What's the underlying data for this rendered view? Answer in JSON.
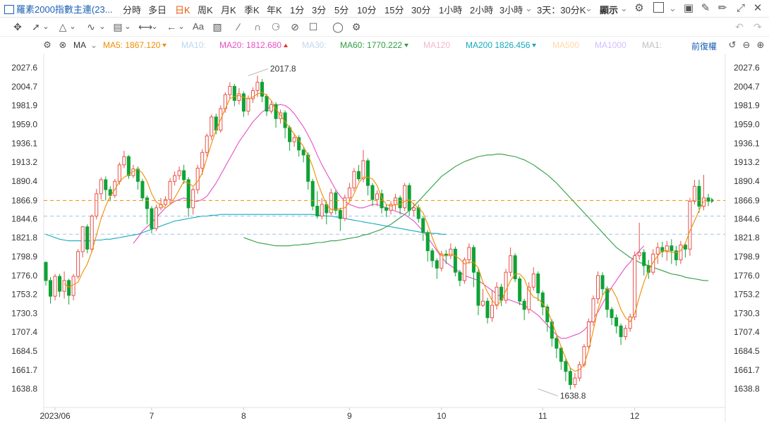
{
  "header": {
    "title": "羅素2000指數主連(23...",
    "timeframes": [
      "分時",
      "多日",
      "日K",
      "周K",
      "月K",
      "季K",
      "年K",
      "1分",
      "3分",
      "5分",
      "10分",
      "15分",
      "30分",
      "1小時",
      "2小時",
      "3小時",
      "3天：30分K",
      "顯示"
    ],
    "active_timeframe": "日K"
  },
  "ma_bar": {
    "selector": "MA",
    "items": [
      {
        "label": "MA5:",
        "value": "1867.120",
        "color": "#f08c00",
        "trend": "down"
      },
      {
        "label": "MA10:",
        "value": "",
        "color": "#b8d8f0",
        "trend": ""
      },
      {
        "label": "MA20:",
        "value": "1812.680",
        "color": "#e64fc4",
        "trend": "up"
      },
      {
        "label": "MA30:",
        "value": "",
        "color": "#c5d5ea",
        "trend": ""
      },
      {
        "label": "MA60:",
        "value": "1770.222",
        "color": "#2f9e44",
        "trend": "down"
      },
      {
        "label": "MA120",
        "value": "",
        "color": "#f4b6cf",
        "trend": ""
      },
      {
        "label": "MA200",
        "value": "1826.456",
        "color": "#15aabf",
        "trend": "down"
      },
      {
        "label": "MA500",
        "value": "",
        "color": "#ffd8a8",
        "trend": ""
      },
      {
        "label": "MA1000",
        "value": "",
        "color": "#d0bfff",
        "trend": ""
      },
      {
        "label": "MA1:",
        "value": "",
        "color": "#c0c0c0",
        "trend": ""
      }
    ],
    "adjust_label": "前復權"
  },
  "colors": {
    "up": "#e8504a",
    "down": "#10a236",
    "ma5": "#f08c00",
    "ma20": "#e64fc4",
    "ma60": "#2f9e44",
    "ma200": "#15aabf",
    "current": "#f08c00"
  },
  "chart_data": {
    "type": "candlestick",
    "y_ticks": [
      "2027.6",
      "2004.7",
      "1981.9",
      "1959.0",
      "1936.1",
      "1913.2",
      "1890.4",
      "1866.9",
      "1844.6",
      "1821.8",
      "1798.9",
      "1776.0",
      "1753.2",
      "1730.3",
      "1707.4",
      "1684.5",
      "1661.7",
      "1638.8"
    ],
    "ylim": [
      1618,
      2043
    ],
    "x_labels": [
      {
        "label": "2023/06",
        "index": 2
      },
      {
        "label": "7",
        "index": 23
      },
      {
        "label": "8",
        "index": 43
      },
      {
        "label": "9",
        "index": 66
      },
      {
        "label": "10",
        "index": 86
      },
      {
        "label": "11",
        "index": 108
      },
      {
        "label": "12",
        "index": 128
      }
    ],
    "current_price": "1866.9",
    "high_annotation": {
      "label": "2017.8",
      "index": 44,
      "value": 2017.8
    },
    "low_annotation": {
      "label": "1638.8",
      "index": 107,
      "value": 1638.8
    },
    "reference_lines": [
      1848,
      1826
    ],
    "candles": [
      [
        1792,
        1770,
        1793,
        1764
      ],
      [
        1770,
        1751,
        1774,
        1742
      ],
      [
        1751,
        1775,
        1778,
        1746
      ],
      [
        1775,
        1757,
        1778,
        1750
      ],
      [
        1757,
        1770,
        1781,
        1748
      ],
      [
        1770,
        1752,
        1772,
        1741
      ],
      [
        1752,
        1775,
        1778,
        1746
      ],
      [
        1775,
        1805,
        1808,
        1772
      ],
      [
        1805,
        1835,
        1836,
        1798
      ],
      [
        1835,
        1808,
        1838,
        1803
      ],
      [
        1808,
        1848,
        1850,
        1804
      ],
      [
        1848,
        1875,
        1881,
        1844
      ],
      [
        1875,
        1892,
        1895,
        1868
      ],
      [
        1892,
        1880,
        1896,
        1867
      ],
      [
        1880,
        1873,
        1884,
        1866
      ],
      [
        1873,
        1890,
        1893,
        1870
      ],
      [
        1890,
        1910,
        1913,
        1886
      ],
      [
        1910,
        1920,
        1927,
        1906
      ],
      [
        1920,
        1897,
        1922,
        1893
      ],
      [
        1897,
        1905,
        1910,
        1894
      ],
      [
        1905,
        1890,
        1908,
        1880
      ],
      [
        1890,
        1870,
        1893,
        1866
      ],
      [
        1870,
        1857,
        1873,
        1838
      ],
      [
        1857,
        1833,
        1860,
        1827
      ],
      [
        1833,
        1858,
        1862,
        1830
      ],
      [
        1858,
        1862,
        1870,
        1855
      ],
      [
        1862,
        1868,
        1872,
        1860
      ],
      [
        1868,
        1890,
        1894,
        1863
      ],
      [
        1890,
        1897,
        1902,
        1885
      ],
      [
        1897,
        1903,
        1908,
        1892
      ],
      [
        1903,
        1892,
        1910,
        1887
      ],
      [
        1892,
        1858,
        1895,
        1847
      ],
      [
        1858,
        1880,
        1883,
        1850
      ],
      [
        1880,
        1906,
        1910,
        1875
      ],
      [
        1906,
        1925,
        1929,
        1898
      ],
      [
        1925,
        1945,
        1948,
        1920
      ],
      [
        1945,
        1968,
        1971,
        1940
      ],
      [
        1968,
        1952,
        1972,
        1947
      ],
      [
        1952,
        1978,
        1982,
        1949
      ],
      [
        1978,
        1995,
        1998,
        1973
      ],
      [
        1995,
        2005,
        2010,
        1990
      ],
      [
        2005,
        1988,
        2008,
        1981
      ],
      [
        1988,
        1996,
        2003,
        1983
      ],
      [
        1996,
        1975,
        1999,
        1968
      ],
      [
        1975,
        1990,
        1994,
        1970
      ],
      [
        1990,
        2000,
        2004,
        1985
      ],
      [
        2000,
        2010,
        2018,
        1992
      ],
      [
        2010,
        1993,
        2014,
        1986
      ],
      [
        1993,
        1975,
        1996,
        1969
      ],
      [
        1975,
        1983,
        1987,
        1972
      ],
      [
        1983,
        1966,
        1986,
        1955
      ],
      [
        1966,
        1973,
        1977,
        1960
      ],
      [
        1973,
        1955,
        1976,
        1942
      ],
      [
        1955,
        1938,
        1958,
        1927
      ],
      [
        1938,
        1943,
        1948,
        1932
      ],
      [
        1943,
        1928,
        1946,
        1920
      ],
      [
        1928,
        1922,
        1931,
        1913
      ],
      [
        1922,
        1890,
        1925,
        1880
      ],
      [
        1890,
        1860,
        1893,
        1855
      ],
      [
        1860,
        1848,
        1878,
        1845
      ],
      [
        1848,
        1862,
        1870,
        1844
      ],
      [
        1862,
        1852,
        1866,
        1838
      ],
      [
        1852,
        1876,
        1881,
        1849
      ],
      [
        1876,
        1855,
        1879,
        1850
      ],
      [
        1855,
        1845,
        1858,
        1830
      ],
      [
        1845,
        1870,
        1874,
        1842
      ],
      [
        1870,
        1882,
        1888,
        1867
      ],
      [
        1882,
        1902,
        1906,
        1878
      ],
      [
        1902,
        1893,
        1910,
        1890
      ],
      [
        1893,
        1915,
        1928,
        1889
      ],
      [
        1915,
        1885,
        1918,
        1873
      ],
      [
        1885,
        1868,
        1888,
        1860
      ],
      [
        1868,
        1875,
        1879,
        1860
      ],
      [
        1875,
        1858,
        1880,
        1851
      ],
      [
        1858,
        1855,
        1862,
        1847
      ],
      [
        1855,
        1862,
        1866,
        1850
      ],
      [
        1862,
        1870,
        1875,
        1855
      ],
      [
        1870,
        1858,
        1873,
        1850
      ],
      [
        1858,
        1885,
        1888,
        1854
      ],
      [
        1885,
        1855,
        1888,
        1848
      ],
      [
        1855,
        1858,
        1864,
        1848
      ],
      [
        1858,
        1845,
        1862,
        1840
      ],
      [
        1845,
        1828,
        1848,
        1818
      ],
      [
        1828,
        1806,
        1831,
        1793
      ],
      [
        1806,
        1794,
        1809,
        1786
      ],
      [
        1794,
        1785,
        1797,
        1772
      ],
      [
        1785,
        1802,
        1806,
        1781
      ],
      [
        1802,
        1800,
        1807,
        1790
      ],
      [
        1800,
        1808,
        1815,
        1796
      ],
      [
        1808,
        1780,
        1811,
        1775
      ],
      [
        1780,
        1770,
        1783,
        1763
      ],
      [
        1770,
        1795,
        1798,
        1766
      ],
      [
        1795,
        1810,
        1815,
        1790
      ],
      [
        1810,
        1780,
        1813,
        1762
      ],
      [
        1780,
        1740,
        1784,
        1728
      ],
      [
        1740,
        1745,
        1760,
        1738
      ],
      [
        1745,
        1725,
        1749,
        1718
      ],
      [
        1725,
        1740,
        1758,
        1720
      ],
      [
        1740,
        1762,
        1768,
        1735
      ],
      [
        1762,
        1746,
        1766,
        1739
      ],
      [
        1746,
        1780,
        1784,
        1742
      ],
      [
        1780,
        1800,
        1810,
        1775
      ],
      [
        1800,
        1772,
        1803,
        1768
      ],
      [
        1772,
        1745,
        1775,
        1740
      ],
      [
        1745,
        1735,
        1748,
        1722
      ],
      [
        1735,
        1762,
        1768,
        1730
      ],
      [
        1762,
        1778,
        1786,
        1758
      ],
      [
        1778,
        1755,
        1781,
        1745
      ],
      [
        1755,
        1738,
        1758,
        1728
      ],
      [
        1738,
        1720,
        1741,
        1708
      ],
      [
        1720,
        1700,
        1723,
        1690
      ],
      [
        1700,
        1688,
        1703,
        1676
      ],
      [
        1688,
        1672,
        1691,
        1662
      ],
      [
        1672,
        1660,
        1675,
        1648
      ],
      [
        1660,
        1644,
        1664,
        1638
      ],
      [
        1644,
        1652,
        1658,
        1640
      ],
      [
        1652,
        1668,
        1672,
        1648
      ],
      [
        1668,
        1690,
        1693,
        1665
      ],
      [
        1690,
        1720,
        1724,
        1687
      ],
      [
        1720,
        1748,
        1752,
        1715
      ],
      [
        1748,
        1776,
        1781,
        1742
      ],
      [
        1776,
        1760,
        1780,
        1752
      ],
      [
        1760,
        1735,
        1763,
        1725
      ],
      [
        1735,
        1725,
        1738,
        1716
      ],
      [
        1725,
        1715,
        1729,
        1706
      ],
      [
        1715,
        1702,
        1718,
        1692
      ],
      [
        1702,
        1712,
        1716,
        1698
      ],
      [
        1712,
        1726,
        1730,
        1708
      ],
      [
        1726,
        1800,
        1805,
        1722
      ],
      [
        1800,
        1804,
        1840,
        1795
      ],
      [
        1804,
        1788,
        1808,
        1776
      ],
      [
        1788,
        1780,
        1795,
        1772
      ],
      [
        1780,
        1802,
        1808,
        1777
      ],
      [
        1802,
        1810,
        1816,
        1790
      ],
      [
        1810,
        1805,
        1817,
        1798
      ],
      [
        1805,
        1812,
        1818,
        1794
      ],
      [
        1812,
        1806,
        1820,
        1790
      ],
      [
        1806,
        1795,
        1812,
        1788
      ],
      [
        1795,
        1813,
        1818,
        1790
      ],
      [
        1813,
        1808,
        1816,
        1798
      ],
      [
        1808,
        1866,
        1870,
        1800
      ],
      [
        1866,
        1884,
        1892,
        1862
      ],
      [
        1884,
        1860,
        1892,
        1852
      ],
      [
        1860,
        1870,
        1898,
        1855
      ],
      [
        1870,
        1866,
        1875,
        1860
      ]
    ],
    "ma5": [
      null,
      null,
      null,
      null,
      1766,
      1762,
      1765,
      1768,
      1780,
      1790,
      1805,
      1825,
      1845,
      1860,
      1872,
      1880,
      1890,
      1895,
      1898,
      1902,
      1905,
      1900,
      1890,
      1875,
      1865,
      1862,
      1858,
      1862,
      1870,
      1880,
      1890,
      1888,
      1884,
      1890,
      1900,
      1918,
      1936,
      1952,
      1965,
      1978,
      1990,
      1993,
      1994,
      1992,
      1990,
      1992,
      1996,
      1998,
      1994,
      1988,
      1978,
      1970,
      1962,
      1955,
      1947,
      1940,
      1932,
      1922,
      1908,
      1890,
      1875,
      1862,
      1856,
      1856,
      1857,
      1858,
      1865,
      1875,
      1888,
      1895,
      1895,
      1893,
      1885,
      1870,
      1862,
      1860,
      1862,
      1862,
      1866,
      1868,
      1862,
      1858,
      1852,
      1838,
      1822,
      1808,
      1800,
      1800,
      1802,
      1800,
      1796,
      1790,
      1792,
      1792,
      1785,
      1768,
      1756,
      1746,
      1740,
      1745,
      1758,
      1770,
      1778,
      1778,
      1772,
      1758,
      1750,
      1748,
      1742,
      1735,
      1720,
      1705,
      1690,
      1676,
      1664,
      1660,
      1662,
      1668,
      1686,
      1710,
      1735,
      1752,
      1760,
      1760,
      1750,
      1735,
      1725,
      1720,
      1730,
      1750,
      1768,
      1782,
      1792,
      1800,
      1806,
      1806,
      1804,
      1804,
      1806,
      1815,
      1830,
      1842,
      1855,
      1866
    ],
    "ma20": [
      null,
      null,
      null,
      null,
      null,
      null,
      null,
      null,
      null,
      null,
      null,
      null,
      null,
      null,
      null,
      null,
      null,
      null,
      null,
      1815,
      1822,
      1830,
      1835,
      1840,
      1846,
      1852,
      1858,
      1862,
      1866,
      1868,
      1870,
      1868,
      1866,
      1866,
      1868,
      1872,
      1880,
      1888,
      1898,
      1908,
      1918,
      1928,
      1938,
      1946,
      1954,
      1962,
      1968,
      1974,
      1978,
      1980,
      1982,
      1983,
      1982,
      1978,
      1972,
      1964,
      1956,
      1946,
      1935,
      1922,
      1910,
      1900,
      1890,
      1880,
      1872,
      1866,
      1862,
      1860,
      1858,
      1858,
      1860,
      1862,
      1862,
      1860,
      1858,
      1856,
      1854,
      1852,
      1850,
      1846,
      1842,
      1836,
      1830,
      1822,
      1814,
      1806,
      1798,
      1792,
      1788,
      1784,
      1780,
      1776,
      1774,
      1772,
      1770,
      1766,
      1762,
      1758,
      1754,
      1750,
      1748,
      1746,
      1744,
      1742,
      1740,
      1736,
      1732,
      1728,
      1722,
      1716,
      1710,
      1704,
      1700,
      1700,
      1702,
      1704,
      1706,
      1710,
      1716,
      1724,
      1732,
      1742,
      1752,
      1762,
      1770,
      1778,
      1786,
      1792,
      1800,
      1806,
      1812
    ],
    "ma60": [
      1822,
      1820,
      1818,
      1816,
      1815,
      1814,
      1813,
      1812,
      1812,
      1812,
      1812,
      1813,
      1813,
      1814,
      1814,
      1815,
      1816,
      1816,
      1817,
      1818,
      1818,
      1819,
      1820,
      1821,
      1822,
      1823,
      1825,
      1826,
      1828,
      1830,
      1832,
      1835,
      1838,
      1842,
      1846,
      1850,
      1855,
      1860,
      1866,
      1872,
      1878,
      1884,
      1890,
      1896,
      1900,
      1904,
      1908,
      1911,
      1914,
      1916,
      1918,
      1920,
      1921,
      1922,
      1922,
      1923,
      1923,
      1922,
      1921,
      1920,
      1918,
      1916,
      1913,
      1910,
      1906,
      1902,
      1898,
      1893,
      1888,
      1882,
      1876,
      1870,
      1864,
      1858,
      1852,
      1846,
      1840,
      1834,
      1828,
      1822,
      1816,
      1810,
      1806,
      1802,
      1798,
      1795,
      1792,
      1790,
      1788,
      1786,
      1784,
      1782,
      1780,
      1778,
      1777,
      1776,
      1774,
      1773,
      1772,
      1771,
      1770,
      1770
    ],
    "ma200": [
      1826,
      1824,
      1822,
      1820,
      1819,
      1818,
      1818,
      1818,
      1818,
      1818,
      1818,
      1819,
      1819,
      1820,
      1820,
      1821,
      1822,
      1823,
      1824,
      1825,
      1826,
      1828,
      1830,
      1832,
      1834,
      1836,
      1838,
      1840,
      1842,
      1843,
      1844,
      1845,
      1846,
      1847,
      1848,
      1848,
      1849,
      1849,
      1850,
      1850,
      1850,
      1850,
      1850,
      1850,
      1850,
      1850,
      1850,
      1850,
      1850,
      1850,
      1850,
      1850,
      1850,
      1850,
      1850,
      1850,
      1850,
      1850,
      1850,
      1849,
      1849,
      1848,
      1848,
      1847,
      1846,
      1845,
      1844,
      1843,
      1842,
      1841,
      1840,
      1839,
      1838,
      1837,
      1836,
      1835,
      1834,
      1833,
      1832,
      1831,
      1830,
      1829,
      1828,
      1828,
      1827,
      1827,
      1826,
      1826
    ]
  }
}
